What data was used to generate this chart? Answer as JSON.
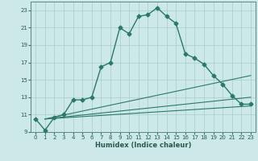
{
  "xlabel": "Humidex (Indice chaleur)",
  "bg_color": "#cce8e8",
  "grid_color": "#aacccc",
  "line_color": "#2a7a6a",
  "xlim": [
    -0.5,
    23.5
  ],
  "ylim": [
    9,
    24
  ],
  "yticks": [
    9,
    11,
    13,
    15,
    17,
    19,
    21,
    23
  ],
  "xticks": [
    0,
    1,
    2,
    3,
    4,
    5,
    6,
    7,
    8,
    9,
    10,
    11,
    12,
    13,
    14,
    15,
    16,
    17,
    18,
    19,
    20,
    21,
    22,
    23
  ],
  "series1_x": [
    0,
    1,
    2,
    3,
    4,
    5,
    6,
    7,
    8,
    9,
    10,
    11,
    12,
    13,
    14,
    15,
    16,
    17,
    18,
    19,
    20,
    21,
    22,
    23
  ],
  "series1_y": [
    10.5,
    9.2,
    10.7,
    11.0,
    12.7,
    12.7,
    13.0,
    16.5,
    17.0,
    21.0,
    20.3,
    22.3,
    22.5,
    23.3,
    22.3,
    21.5,
    18.0,
    17.5,
    16.8,
    15.5,
    14.5,
    13.2,
    12.2,
    12.2
  ],
  "series2_x": [
    1,
    23
  ],
  "series2_y": [
    10.5,
    15.5
  ],
  "series3_x": [
    1,
    23
  ],
  "series3_y": [
    10.5,
    13.0
  ],
  "series4_x": [
    1,
    23
  ],
  "series4_y": [
    10.5,
    12.0
  ]
}
